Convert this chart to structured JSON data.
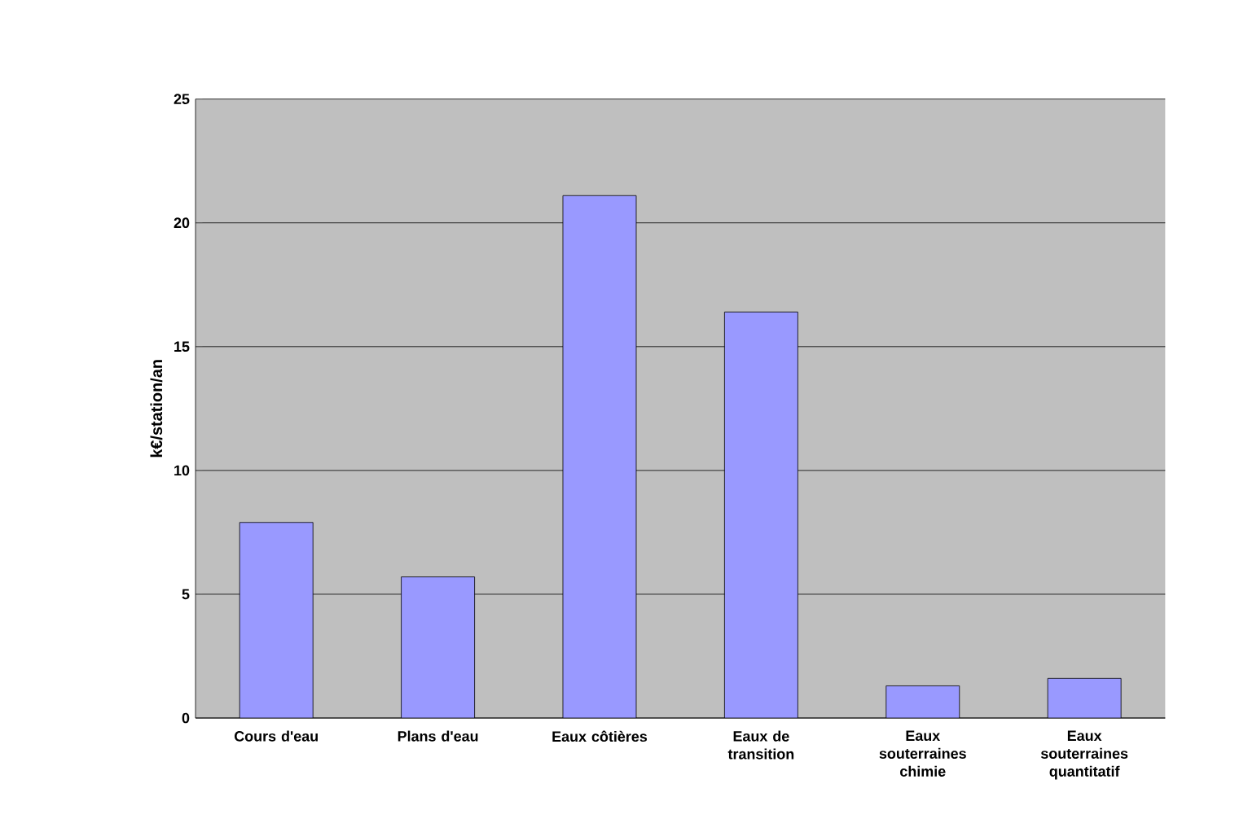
{
  "chart_data": {
    "type": "bar",
    "ylabel": "k€/station/an",
    "categories": [
      "Cours d'eau",
      "Plans d'eau",
      "Eaux côtières",
      "Eaux de transition",
      "Eaux souterraines chimie",
      "Eaux souterraines quantitatif"
    ],
    "values": [
      7.9,
      5.7,
      21.1,
      16.4,
      1.3,
      1.6
    ],
    "color": "#9999ff",
    "ylim": [
      0,
      25
    ],
    "yticks": [
      0,
      5,
      10,
      15,
      20,
      25
    ],
    "grid": "y"
  }
}
